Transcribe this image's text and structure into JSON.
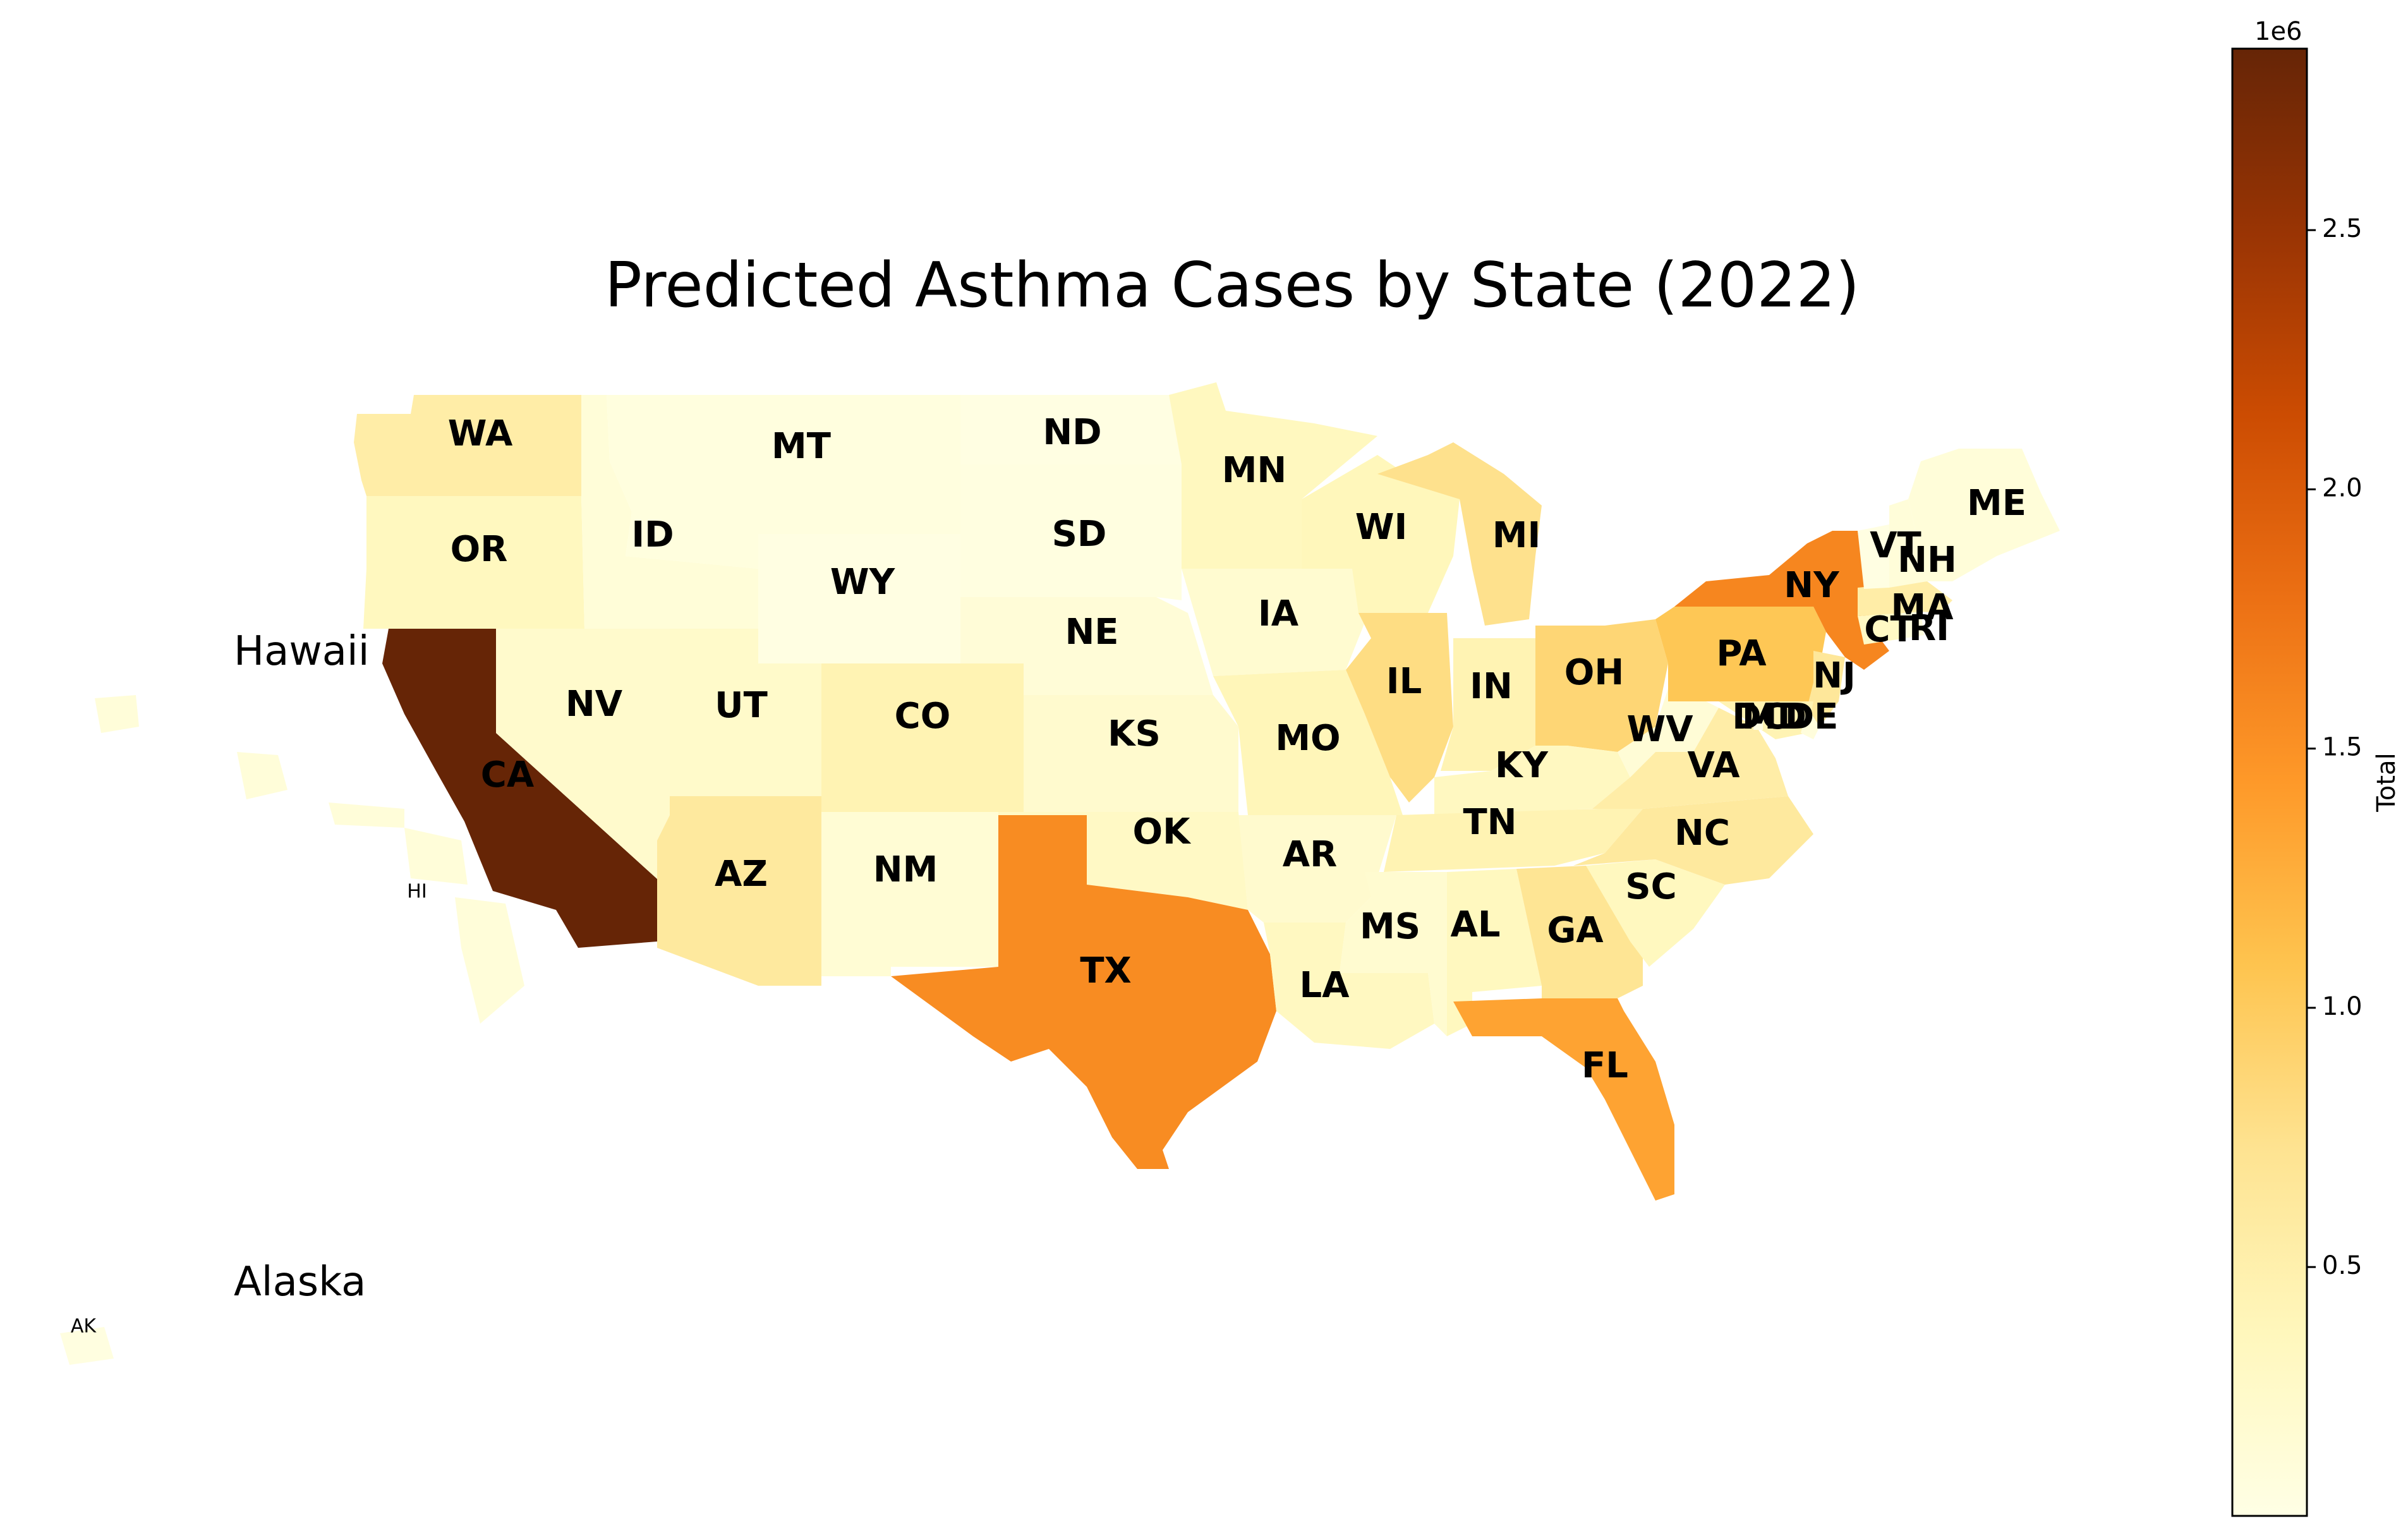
{
  "title": "Predicted Asthma Cases by State (2022)",
  "insets": {
    "hawaii_title": "Hawaii",
    "alaska_title": "Alaska",
    "hi_label": "HI",
    "ak_label": "AK"
  },
  "colorbar": {
    "label": "Total",
    "exponent": "1e6",
    "ticks": [
      "0.5",
      "1.0",
      "1.5",
      "2.0",
      "2.5"
    ],
    "tick_values": [
      0.5,
      1.0,
      1.5,
      2.0,
      2.5
    ],
    "min": 0.02,
    "max": 2.85,
    "colormap": "YlOrBr",
    "colors": [
      "#ffffe5",
      "#fff7bc",
      "#fee391",
      "#fec44f",
      "#fe9929",
      "#ec7014",
      "#cc4c02",
      "#993404",
      "#662506"
    ]
  },
  "states": [
    {
      "label": "WA",
      "value": 0.55
    },
    {
      "label": "OR",
      "value": 0.35
    },
    {
      "label": "CA",
      "value": 2.85
    },
    {
      "label": "ID",
      "value": 0.13
    },
    {
      "label": "NV",
      "value": 0.24
    },
    {
      "label": "MT",
      "value": 0.08
    },
    {
      "label": "WY",
      "value": 0.05
    },
    {
      "label": "UT",
      "value": 0.25
    },
    {
      "label": "AZ",
      "value": 0.62
    },
    {
      "label": "CO",
      "value": 0.45
    },
    {
      "label": "NM",
      "value": 0.17
    },
    {
      "label": "ND",
      "value": 0.05
    },
    {
      "label": "SD",
      "value": 0.06
    },
    {
      "label": "NE",
      "value": 0.14
    },
    {
      "label": "KS",
      "value": 0.22
    },
    {
      "label": "OK",
      "value": 0.3
    },
    {
      "label": "TX",
      "value": 1.55
    },
    {
      "label": "MN",
      "value": 0.35
    },
    {
      "label": "IA",
      "value": 0.2
    },
    {
      "label": "MO",
      "value": 0.4
    },
    {
      "label": "AR",
      "value": 0.22
    },
    {
      "label": "LA",
      "value": 0.33
    },
    {
      "label": "WI",
      "value": 0.38
    },
    {
      "label": "IL",
      "value": 0.8
    },
    {
      "label": "MI",
      "value": 0.75
    },
    {
      "label": "IN",
      "value": 0.45
    },
    {
      "label": "OH",
      "value": 0.88
    },
    {
      "label": "KY",
      "value": 0.33
    },
    {
      "label": "TN",
      "value": 0.45
    },
    {
      "label": "MS",
      "value": 0.2
    },
    {
      "label": "AL",
      "value": 0.35
    },
    {
      "label": "GA",
      "value": 0.7
    },
    {
      "label": "FL",
      "value": 1.35
    },
    {
      "label": "SC",
      "value": 0.35
    },
    {
      "label": "NC",
      "value": 0.62
    },
    {
      "label": "VA",
      "value": 0.55
    },
    {
      "label": "WV",
      "value": 0.15
    },
    {
      "label": "PA",
      "value": 1.05
    },
    {
      "label": "NY",
      "value": 1.6
    },
    {
      "label": "NJ",
      "value": 0.65
    },
    {
      "label": "DE",
      "value": 0.1
    },
    {
      "label": "MD",
      "value": 0.45
    },
    {
      "label": "DC",
      "value": 0.05
    },
    {
      "label": "CT",
      "value": 0.3
    },
    {
      "label": "RI",
      "value": 0.09
    },
    {
      "label": "MA",
      "value": 0.55
    },
    {
      "label": "VT",
      "value": 0.05
    },
    {
      "label": "NH",
      "value": 0.12
    },
    {
      "label": "ME",
      "value": 0.12
    },
    {
      "label": "HI",
      "value": 0.12
    },
    {
      "label": "AK",
      "value": 0.06
    }
  ]
}
